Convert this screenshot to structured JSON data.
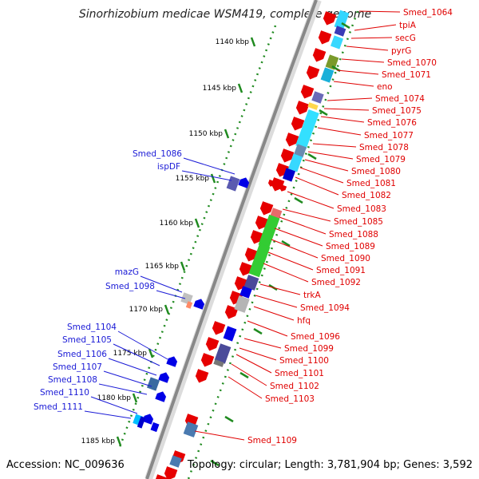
{
  "title": "Sinorhizobium medicae WSM419, complete genome",
  "accession": "Accession: NC_009636",
  "topology": "Topology: circular; Length: 3,781,904 bp; Genes: 3,592",
  "colors": {
    "forward_label": "#1a1ad6",
    "reverse_label": "#e00000",
    "ring": "#888888",
    "ticks": "#1f8a1f"
  },
  "ticks": [
    "1140 kbp",
    "1145 kbp",
    "1150 kbp",
    "1155 kbp",
    "1160 kbp",
    "1165 kbp",
    "1170 kbp",
    "1175 kbp",
    "1180 kbp",
    "1185 kbp"
  ],
  "left_labels": [
    "Smed_1086",
    "ispDF",
    "mazG",
    "Smed_1098",
    "Smed_1104",
    "Smed_1105",
    "Smed_1106",
    "Smed_1107",
    "Smed_1108",
    "Smed_1110",
    "Smed_1111"
  ],
  "right_labels": [
    "Smed_1064",
    "tpiA",
    "secG",
    "pyrG",
    "Smed_1070",
    "Smed_1071",
    "eno",
    "Smed_1074",
    "Smed_1075",
    "Smed_1076",
    "Smed_1077",
    "Smed_1078",
    "Smed_1079",
    "Smed_1080",
    "Smed_1081",
    "Smed_1082",
    "Smed_1083",
    "Smed_1085",
    "Smed_1088",
    "Smed_1089",
    "Smed_1090",
    "Smed_1091",
    "Smed_1092",
    "trkA",
    "Smed_1094",
    "hfq",
    "Smed_1096",
    "Smed_1099",
    "Smed_1100",
    "Smed_1101",
    "Smed_1102",
    "Smed_1103",
    "Smed_1109"
  ]
}
